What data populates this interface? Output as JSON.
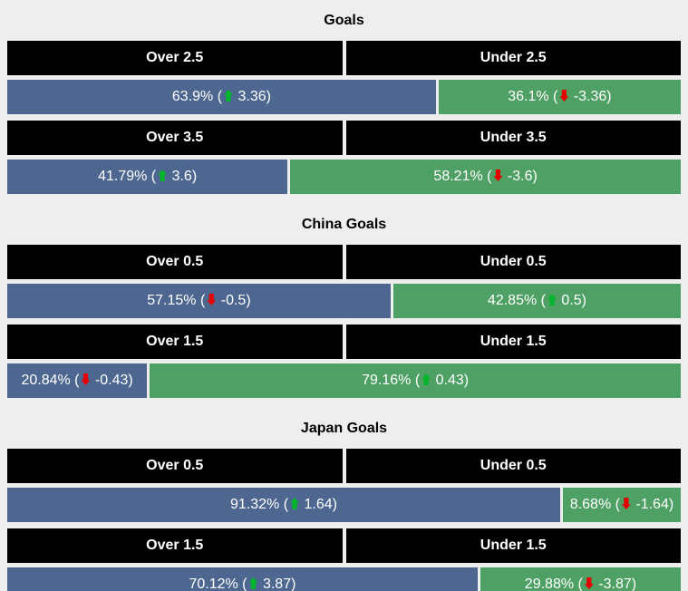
{
  "colors": {
    "page_bg": "#eeeeee",
    "header_bg": "#000000",
    "header_text": "#ffffff",
    "over_bar": "#4e6790",
    "under_bar": "#4fa065",
    "bar_text": "#ffffff",
    "trend_up": "#00b52c",
    "trend_down": "#e60000"
  },
  "chart_data": [
    {
      "type": "bar",
      "title": "Goals",
      "rows": [
        {
          "over_label": "Over 2.5",
          "under_label": "Under 2.5",
          "over_pct": 63.9,
          "under_pct": 36.1,
          "over_pct_label": "63.9%",
          "under_pct_label": "36.1%",
          "over_trend": "up",
          "over_value": "3.36",
          "under_trend": "down",
          "under_value": "-3.36"
        },
        {
          "over_label": "Over 3.5",
          "under_label": "Under 3.5",
          "over_pct": 41.79,
          "under_pct": 58.21,
          "over_pct_label": "41.79%",
          "under_pct_label": "58.21%",
          "over_trend": "up",
          "over_value": "3.6",
          "under_trend": "down",
          "under_value": "-3.6"
        }
      ]
    },
    {
      "type": "bar",
      "title": "China Goals",
      "rows": [
        {
          "over_label": "Over 0.5",
          "under_label": "Under 0.5",
          "over_pct": 57.15,
          "under_pct": 42.85,
          "over_pct_label": "57.15%",
          "under_pct_label": "42.85%",
          "over_trend": "down",
          "over_value": "-0.5",
          "under_trend": "up",
          "under_value": "0.5"
        },
        {
          "over_label": "Over 1.5",
          "under_label": "Under 1.5",
          "over_pct": 20.84,
          "under_pct": 79.16,
          "over_pct_label": "20.84%",
          "under_pct_label": "79.16%",
          "over_trend": "down",
          "over_value": "-0.43",
          "under_trend": "up",
          "under_value": "0.43"
        }
      ]
    },
    {
      "type": "bar",
      "title": "Japan Goals",
      "rows": [
        {
          "over_label": "Over 0.5",
          "under_label": "Under 0.5",
          "over_pct": 91.32,
          "under_pct": 8.68,
          "over_pct_label": "91.32%",
          "under_pct_label": "8.68%",
          "over_trend": "up",
          "over_value": "1.64",
          "under_trend": "down",
          "under_value": "-1.64"
        },
        {
          "over_label": "Over 1.5",
          "under_label": "Under 1.5",
          "over_pct": 70.12,
          "under_pct": 29.88,
          "over_pct_label": "70.12%",
          "under_pct_label": "29.88%",
          "over_trend": "up",
          "over_value": "3.87",
          "under_trend": "down",
          "under_value": "-3.87"
        }
      ]
    }
  ]
}
